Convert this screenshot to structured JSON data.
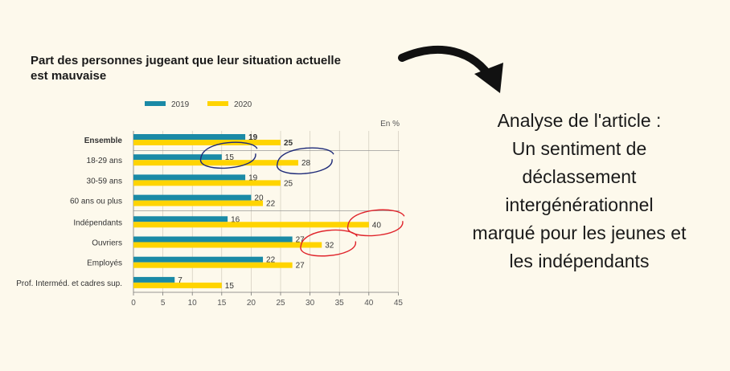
{
  "chart_data": {
    "type": "bar",
    "title": "Part des personnes jugeant que leur situation actuelle est mauvaise",
    "title_lines": [
      "Part des personnes jugeant que leur situation actuelle",
      "est mauvaise"
    ],
    "unit": "En %",
    "orientation": "horizontal",
    "categories": [
      "Ensemble",
      "18-29 ans",
      "30-59 ans",
      "60 ans ou plus",
      "Indépendants",
      "Ouvriers",
      "Employés",
      "Prof. Interméd. et cadres sup."
    ],
    "series": [
      {
        "name": "2019",
        "color": "#1a8aa6",
        "values": [
          19,
          15,
          19,
          20,
          16,
          27,
          22,
          7
        ]
      },
      {
        "name": "2020",
        "color": "#ffd400",
        "values": [
          25,
          28,
          25,
          22,
          40,
          32,
          27,
          15
        ]
      }
    ],
    "xlim": [
      0,
      45
    ],
    "xticks": [
      0,
      5,
      10,
      15,
      20,
      25,
      30,
      35,
      40,
      45
    ],
    "legend_position": "top-left",
    "grid": true,
    "bold_category": "Ensemble",
    "annotations": [
      {
        "type": "circle",
        "color": "#1e2a78",
        "category": "18-29 ans",
        "series": "2019"
      },
      {
        "type": "circle",
        "color": "#1e2a78",
        "category": "18-29 ans",
        "series": "2020"
      },
      {
        "type": "circle",
        "color": "#e0242b",
        "category": "Indépendants",
        "series": "2020"
      },
      {
        "type": "circle",
        "color": "#e0242b",
        "category": "Ouvriers",
        "series": "2020"
      }
    ]
  },
  "analysis": {
    "lines": [
      "Analyse de l'article :",
      "Un sentiment de",
      "déclassement",
      "intergénérationnel",
      "marqué pour les jeunes et",
      "les indépendants"
    ]
  },
  "arrow_color": "#111111"
}
